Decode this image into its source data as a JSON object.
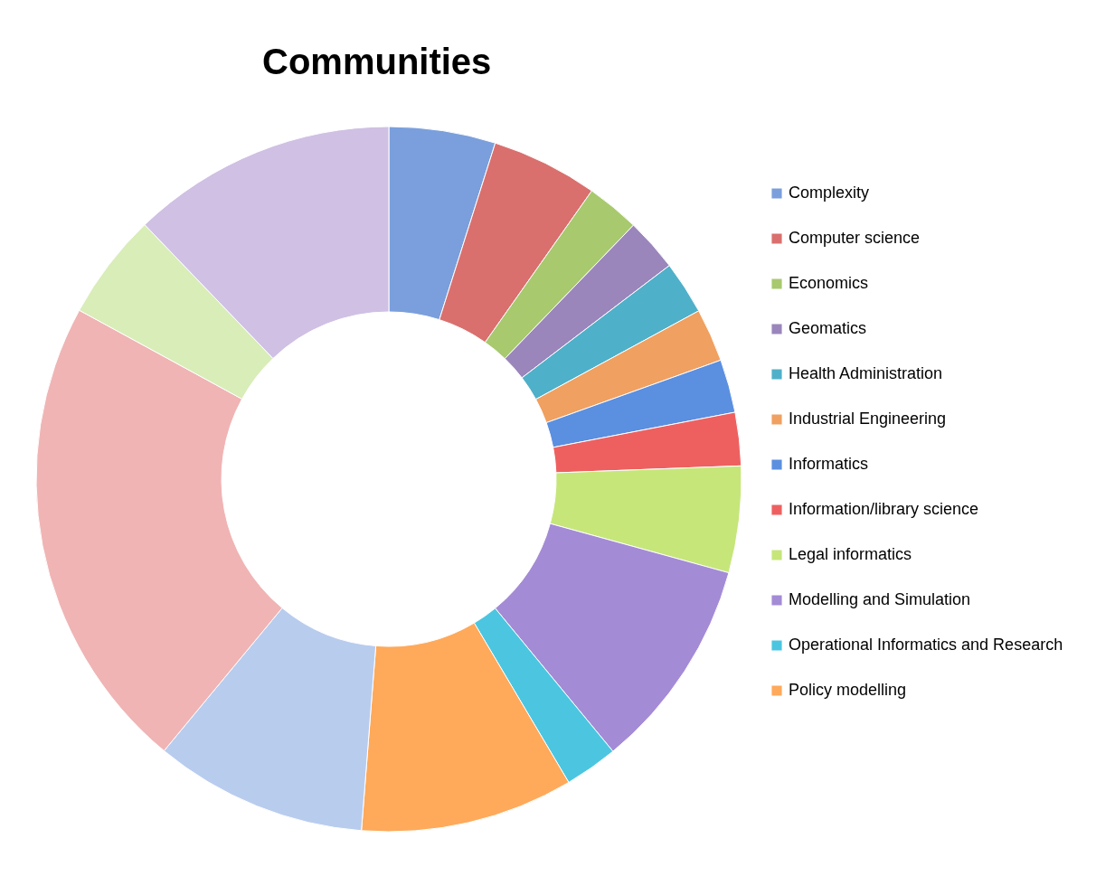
{
  "chart_data": {
    "type": "donut",
    "title": "Communities",
    "categories": [
      "Complexity",
      "Computer science",
      "Economics",
      "Geomatics",
      "Health Administration",
      "Industrial Engineering",
      "Informatics",
      "Information/library science",
      "Legal informatics",
      "Modelling and Simulation",
      "Operational Informatics and Research",
      "Policy modelling",
      null,
      null,
      null,
      null
    ],
    "values": [
      4.88,
      4.88,
      2.44,
      2.44,
      2.44,
      2.44,
      2.44,
      2.44,
      4.88,
      9.76,
      2.44,
      9.76,
      9.76,
      21.95,
      4.88,
      12.17
    ],
    "colors": [
      "#7a9fdc",
      "#d9706e",
      "#a8c96e",
      "#9a86bb",
      "#4fb0c9",
      "#f0a060",
      "#5b8fe0",
      "#ee6060",
      "#c6e67a",
      "#a48bd6",
      "#4cc6e0",
      "#ffa95a",
      "#b8ccee",
      "#f0b4b4",
      "#d8edb8",
      "#cfc0e4"
    ],
    "legend": "right"
  }
}
